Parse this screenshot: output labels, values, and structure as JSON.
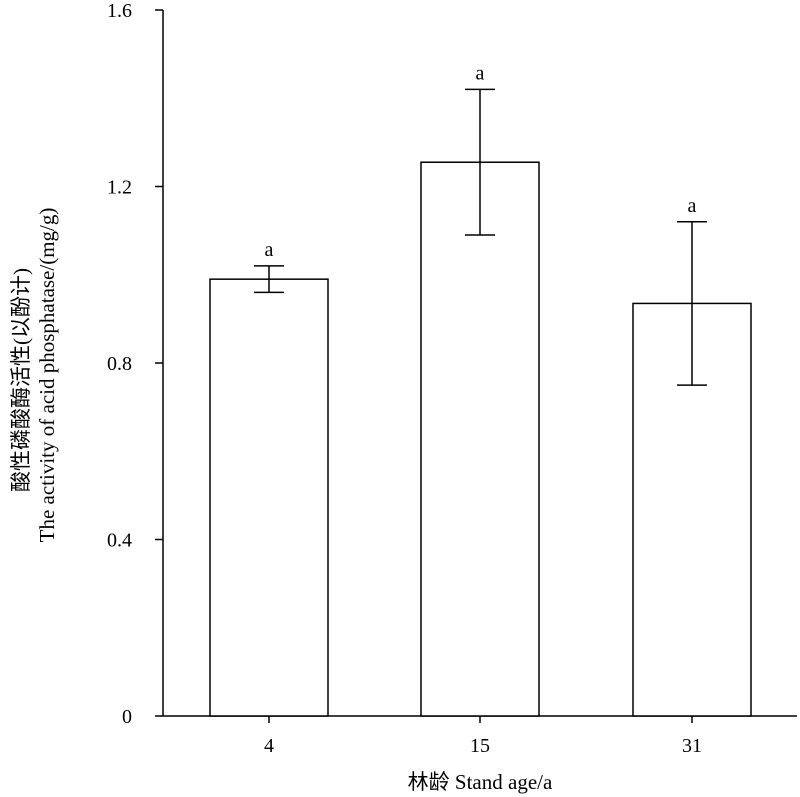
{
  "chart_data": {
    "type": "bar",
    "categories": [
      "4",
      "15",
      "31"
    ],
    "values": [
      0.99,
      1.255,
      0.935
    ],
    "errors": [
      0.03,
      0.165,
      0.185
    ],
    "significance": [
      "a",
      "a",
      "a"
    ],
    "ylim": [
      0,
      1.6
    ],
    "yticks": [
      "0",
      "0.4",
      "0.8",
      "1.2",
      "1.6"
    ],
    "xlabel": "林龄 Stand age/a",
    "ylabel_line1": "酸性磷酸酶活性(以酚计)",
    "ylabel_line2": "The activity of acid phosphatase/(mg/g)",
    "grid": false,
    "bar_fill": "#ffffff",
    "bar_stroke": "#000000"
  }
}
